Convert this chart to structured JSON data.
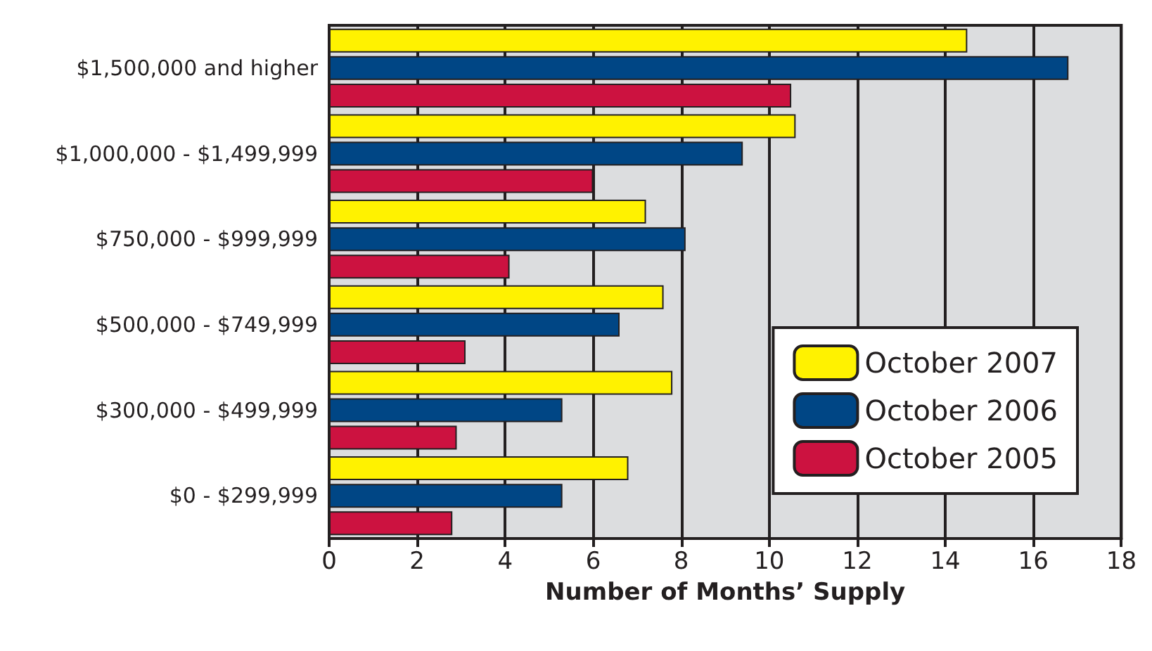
{
  "chart_data": {
    "type": "bar",
    "orientation": "horizontal",
    "xlabel": "Number of Months’ Supply",
    "categories": [
      "$1,500,000 and higher",
      "$1,000,000 - $1,499,999",
      "$750,000 - $999,999",
      "$500,000 - $749,999",
      "$300,000 - $499,999",
      "$0 - $299,999"
    ],
    "series": [
      {
        "name": "October 2007",
        "color": "#fff200",
        "values": [
          14.5,
          10.6,
          7.2,
          7.6,
          7.8,
          6.8
        ]
      },
      {
        "name": "October 2006",
        "color": "#004685",
        "values": [
          16.8,
          9.4,
          8.1,
          6.6,
          5.3,
          5.3
        ]
      },
      {
        "name": "October 2005",
        "color": "#cc1240",
        "values": [
          10.5,
          6.0,
          4.1,
          3.1,
          2.9,
          2.8
        ]
      }
    ],
    "xlim": [
      0,
      18
    ],
    "xticks": [
      0,
      2,
      4,
      6,
      8,
      10,
      12,
      14,
      16,
      18
    ],
    "grid": "x",
    "legend": "right"
  }
}
